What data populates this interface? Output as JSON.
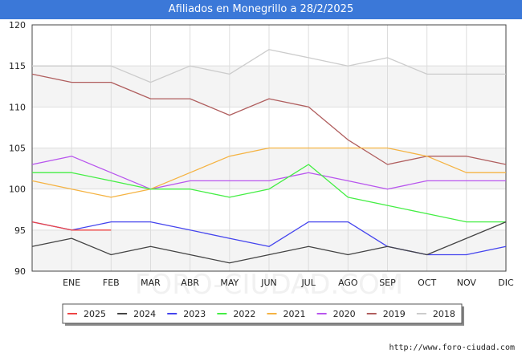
{
  "title": "Afiliados en Monegrillo a 28/2/2025",
  "footer_url": "http://www.foro-ciudad.com",
  "watermark": "FORO-CIUDAD.COM",
  "chart_data": {
    "type": "line",
    "title": "Afiliados en Monegrillo a 28/2/2025",
    "categories": [
      "",
      "ENE",
      "FEB",
      "MAR",
      "ABR",
      "MAY",
      "JUN",
      "JUL",
      "AGO",
      "SEP",
      "OCT",
      "NOV",
      "DIC"
    ],
    "ylim": [
      90,
      120
    ],
    "yticks": [
      90,
      95,
      100,
      105,
      110,
      115,
      120
    ],
    "grid": true,
    "legend_position": "bottom",
    "series": [
      {
        "name": "2025",
        "color": "#ee4444",
        "values": [
          96,
          95,
          95,
          null,
          null,
          null,
          null,
          null,
          null,
          null,
          null,
          null,
          null
        ]
      },
      {
        "name": "2024",
        "color": "#444444",
        "values": [
          93,
          94,
          92,
          93,
          92,
          91,
          92,
          93,
          92,
          93,
          92,
          94,
          96
        ]
      },
      {
        "name": "2023",
        "color": "#4444ee",
        "values": [
          96,
          95,
          96,
          96,
          95,
          94,
          93,
          96,
          96,
          93,
          92,
          92,
          93
        ]
      },
      {
        "name": "2022",
        "color": "#44ee44",
        "values": [
          102,
          102,
          101,
          100,
          100,
          99,
          100,
          103,
          99,
          98,
          97,
          96,
          96
        ]
      },
      {
        "name": "2021",
        "color": "#f5b342",
        "values": [
          101,
          100,
          99,
          100,
          102,
          104,
          105,
          105,
          105,
          105,
          104,
          102,
          102
        ]
      },
      {
        "name": "2020",
        "color": "#b855ee",
        "values": [
          103,
          104,
          102,
          100,
          101,
          101,
          101,
          102,
          101,
          100,
          101,
          101,
          101
        ]
      },
      {
        "name": "2019",
        "color": "#b05e5e",
        "values": [
          114,
          113,
          113,
          111,
          111,
          109,
          111,
          110,
          106,
          103,
          104,
          104,
          103
        ]
      },
      {
        "name": "2018",
        "color": "#cccccc",
        "values": [
          115,
          115,
          115,
          113,
          115,
          114,
          117,
          116,
          115,
          116,
          114,
          114,
          114
        ]
      }
    ]
  }
}
